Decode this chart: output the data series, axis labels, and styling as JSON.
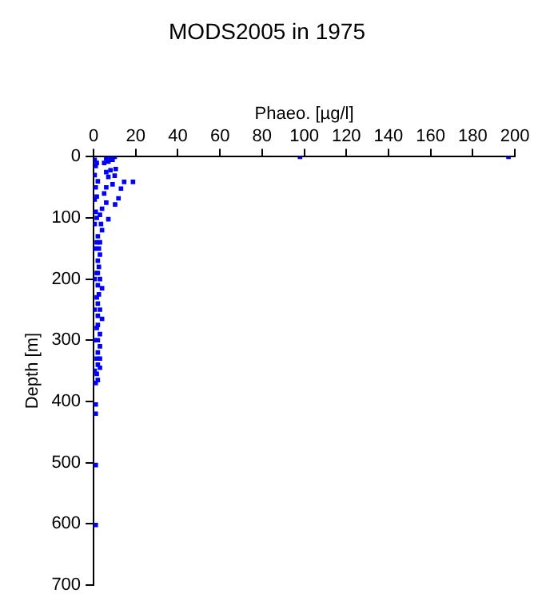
{
  "chart_data": {
    "type": "scatter",
    "title": "MODS2005 in 1975",
    "xlabel": "Phaeo. [µg/l]",
    "ylabel": "Depth [m]",
    "xlim": [
      0,
      200
    ],
    "xticks": [
      0,
      20,
      40,
      60,
      80,
      100,
      120,
      140,
      160,
      180,
      200
    ],
    "ylim": [
      700,
      0
    ],
    "yticks": [
      0,
      100,
      200,
      300,
      400,
      500,
      600,
      700
    ],
    "grid": false,
    "legend": false,
    "marker": "square",
    "series": [
      {
        "color": "#0000ff",
        "x": [
          197,
          98,
          10,
          8,
          6,
          9,
          7,
          5,
          10.5,
          8,
          6,
          10,
          7,
          14.5,
          18.7,
          9,
          13,
          6,
          11.8,
          5,
          10.2,
          6,
          4,
          7,
          3,
          3.5,
          4,
          2,
          3,
          2.5,
          3,
          2,
          2.5,
          2,
          3,
          2,
          4,
          2.5,
          2,
          3,
          2,
          4,
          2,
          3,
          2,
          3,
          2,
          3,
          2,
          3,
          1.5,
          2,
          1,
          1,
          1,
          1,
          1,
          0.5,
          1,
          0.5,
          1,
          0.5,
          1,
          0.5,
          0.5,
          0.5,
          0.5,
          0.5,
          0.5,
          1.5,
          2,
          1.5,
          1.5,
          1.5,
          1.5,
          1.5,
          1.5,
          1.5
        ],
        "values": [
          0,
          0,
          0,
          2,
          3,
          5,
          8,
          10,
          20,
          22,
          25,
          31,
          33,
          41,
          41,
          45,
          52,
          50,
          68,
          60,
          78,
          75,
          85,
          102,
          95,
          110,
          120,
          130,
          140,
          150,
          160,
          170,
          180,
          190,
          200,
          210,
          215,
          225,
          240,
          250,
          260,
          265,
          275,
          290,
          300,
          310,
          320,
          330,
          340,
          345,
          355,
          365,
          370,
          405,
          420,
          504,
          602,
          5,
          15,
          30,
          50,
          70,
          90,
          110,
          150,
          200,
          250,
          300,
          350,
          10,
          40,
          65,
          100,
          140,
          190,
          230,
          280,
          330
        ]
      }
    ]
  }
}
